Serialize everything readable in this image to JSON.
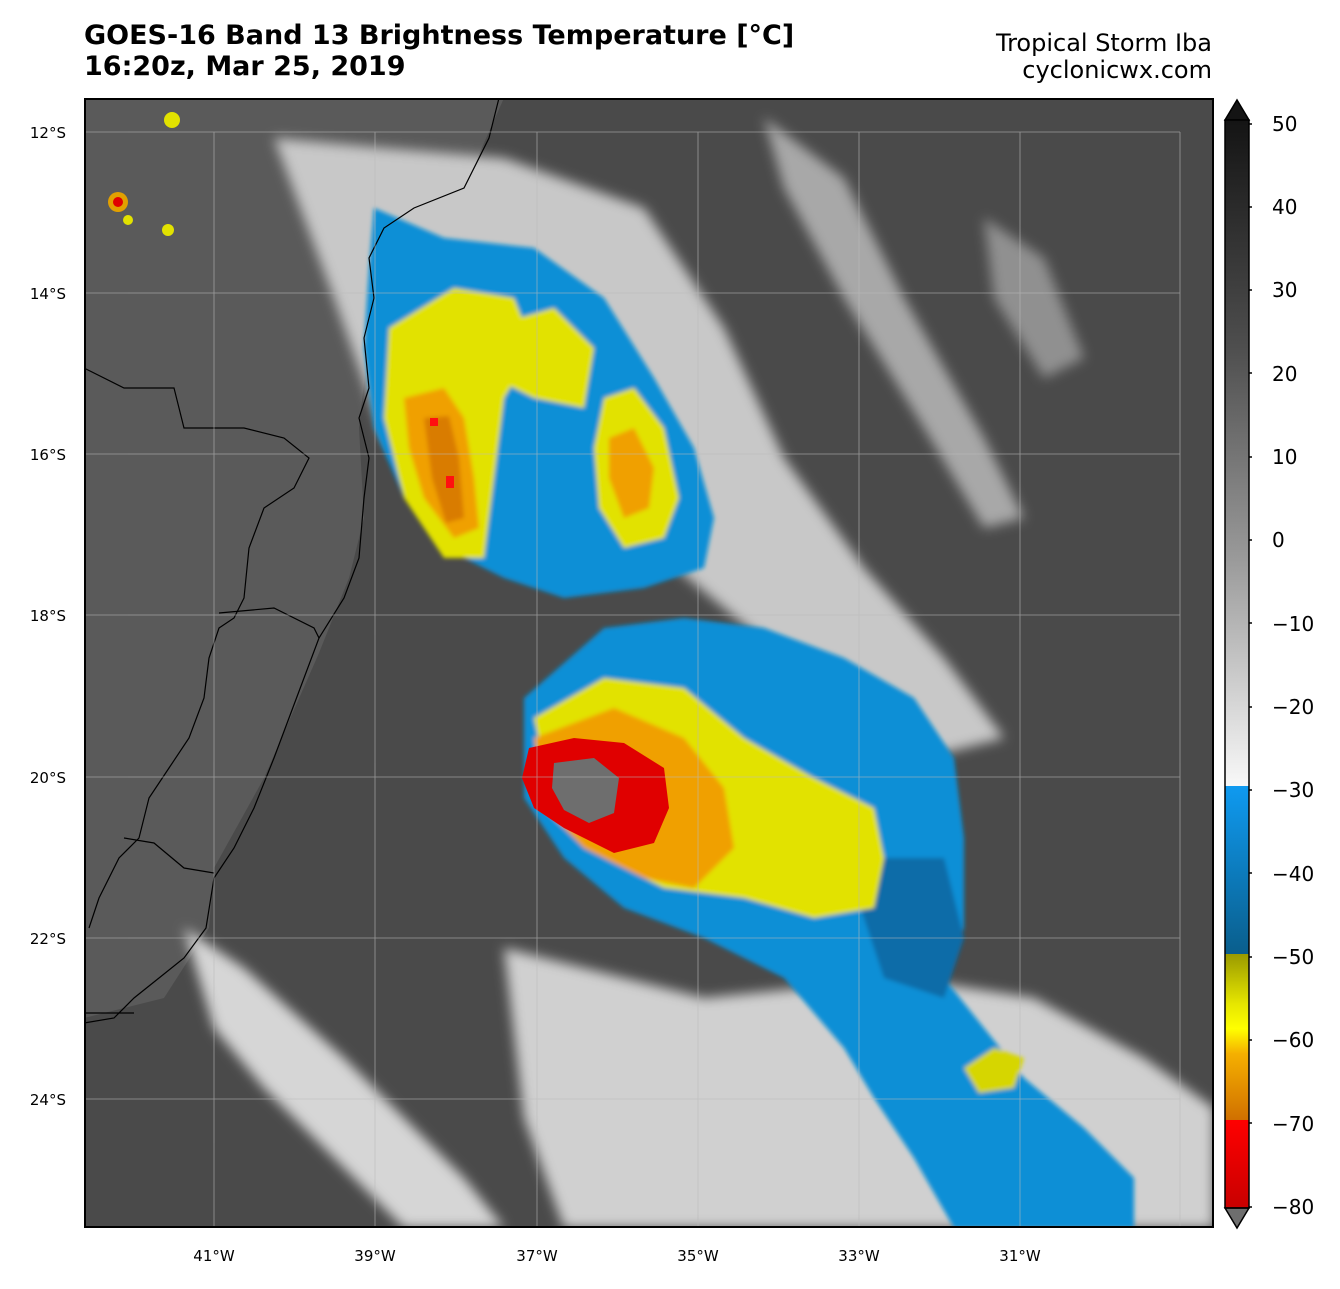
{
  "header": {
    "title": "GOES-16 Band 13 Brightness Temperature [°C]",
    "subtitle": "16:20z, Mar 25, 2019",
    "storm_name": "Tropical Storm Iba",
    "site": "cyclonicwx.com"
  },
  "map": {
    "lat_labels": [
      "12°S",
      "14°S",
      "16°S",
      "18°S",
      "20°S",
      "22°S",
      "24°S"
    ],
    "lon_labels": [
      "41°W",
      "39°W",
      "37°W",
      "35°W",
      "33°W",
      "31°W"
    ]
  },
  "colorbar": {
    "labels": [
      "50",
      "40",
      "30",
      "20",
      "10",
      "0",
      "−10",
      "−20",
      "−30",
      "−40",
      "−50",
      "−60",
      "−70",
      "−80"
    ],
    "range_c": [
      -80,
      50
    ],
    "palette": {
      "cold_red": "#e00000",
      "orange": "#f5a000",
      "yellow": "#e8e800",
      "blue": "#0a8fd6",
      "dark_blue": "#0a6ca8",
      "gray_warm": "#4a4a4a"
    }
  }
}
